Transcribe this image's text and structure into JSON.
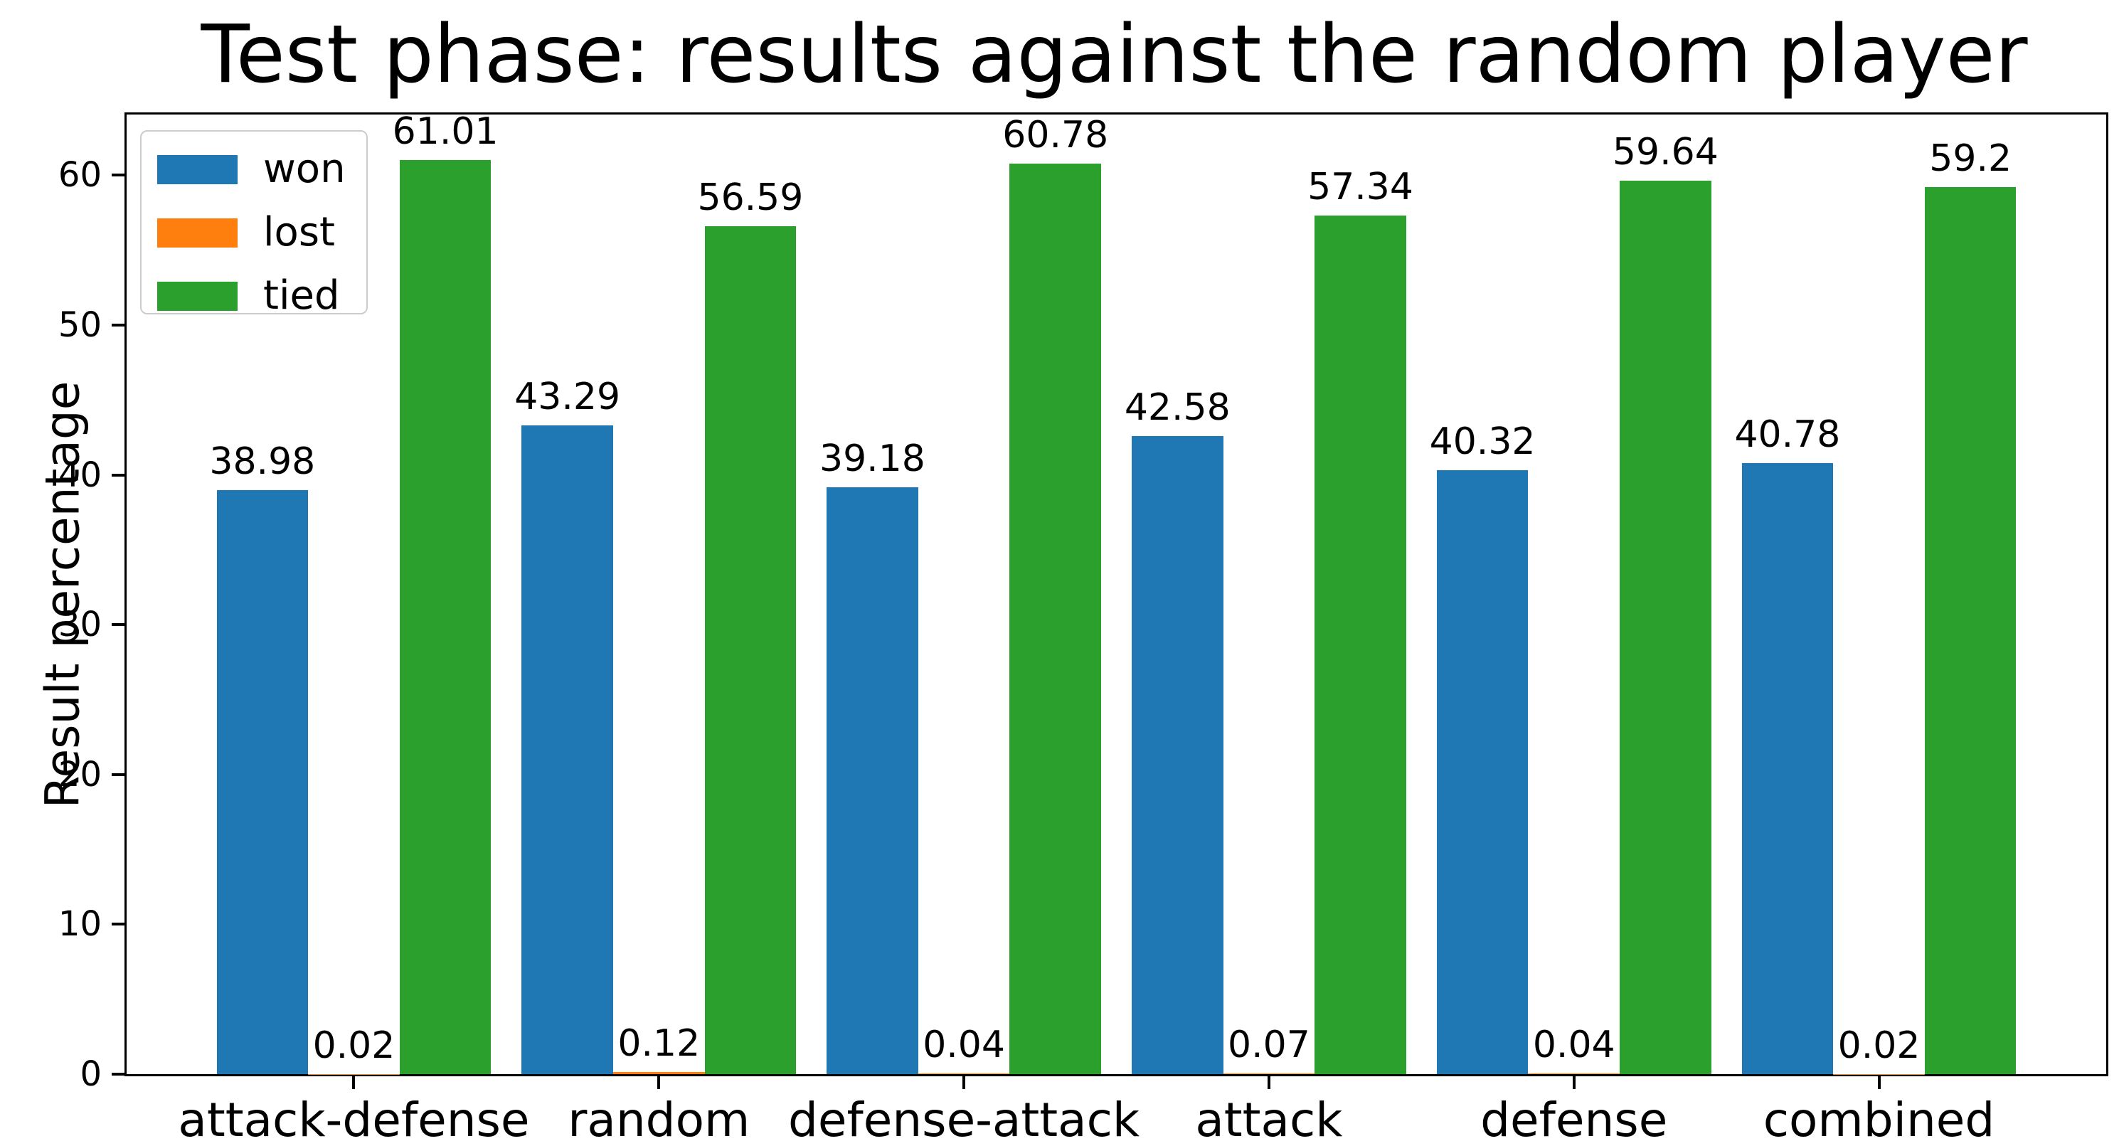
{
  "chart_data": {
    "type": "bar",
    "title": "Test phase: results against the random player",
    "xlabel": "",
    "ylabel": "Result percentage",
    "categories": [
      "attack-defense",
      "random",
      "defense-attack",
      "attack",
      "defense",
      "combined"
    ],
    "series": [
      {
        "name": "won",
        "color": "#1f77b4",
        "values": [
          38.98,
          43.29,
          39.18,
          42.58,
          40.32,
          40.78
        ]
      },
      {
        "name": "lost",
        "color": "#ff7f0e",
        "values": [
          0.02,
          0.12,
          0.04,
          0.07,
          0.04,
          0.02
        ]
      },
      {
        "name": "tied",
        "color": "#2ca02c",
        "values": [
          61.01,
          56.59,
          60.78,
          57.34,
          59.64,
          59.2
        ]
      }
    ],
    "bar_value_labels": true,
    "yticks": [
      0,
      10,
      20,
      30,
      40,
      50,
      60
    ],
    "ylim": [
      0,
      64.06
    ],
    "grid": false,
    "legend": {
      "position": "upper left",
      "labels": [
        "won",
        "lost",
        "tied"
      ]
    },
    "spine_color": "#000000",
    "background": "#ffffff"
  }
}
